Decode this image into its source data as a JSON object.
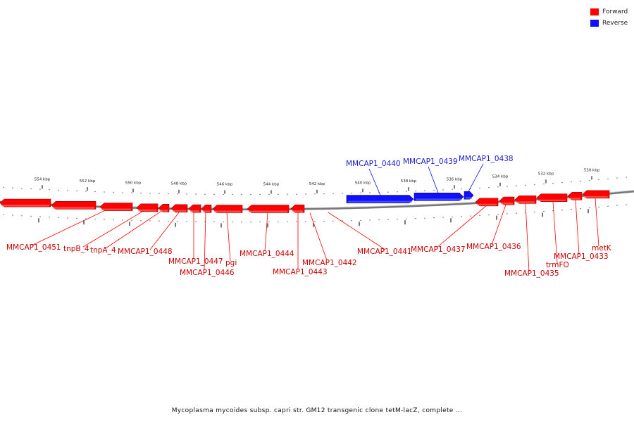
{
  "legend": {
    "items": [
      {
        "label": "Forward",
        "color": "#ff0000"
      },
      {
        "label": "Reverse",
        "color": "#1010ff"
      }
    ]
  },
  "caption": "Mycoplasma mycoides subsp. capri str. GM12 transgenic clone tetM-lacZ, complete ...",
  "ruler": {
    "unit": "kbp",
    "ticks": [
      "554 kbp",
      "552 kbp",
      "550 kbp",
      "548 kbp",
      "546 kbp",
      "544 kbp",
      "542 kbp",
      "540 kbp",
      "538 kbp",
      "536 kbp",
      "534 kbp",
      "532 kbp",
      "530 kbp"
    ]
  },
  "colors": {
    "forward": "#ff0000",
    "reverse": "#1010ff",
    "backbone": "#777777"
  },
  "genes": [
    {
      "label": "MMCAP1_0451",
      "strand": "forward"
    },
    {
      "label": "tnpB_4",
      "strand": "forward"
    },
    {
      "label": "tnpA_4",
      "strand": "forward"
    },
    {
      "label": "MMCAP1_0448",
      "strand": "forward"
    },
    {
      "label": "MMCAP1_0447",
      "strand": "forward"
    },
    {
      "label": "MMCAP1_0446",
      "strand": "forward"
    },
    {
      "label": "pgi",
      "strand": "forward"
    },
    {
      "label": "MMCAP1_0444",
      "strand": "forward"
    },
    {
      "label": "MMCAP1_0443",
      "strand": "forward"
    },
    {
      "label": "MMCAP1_0442",
      "strand": "forward"
    },
    {
      "label": "MMCAP1_0441",
      "strand": "forward"
    },
    {
      "label": "MMCAP1_0440",
      "strand": "reverse"
    },
    {
      "label": "MMCAP1_0439",
      "strand": "reverse"
    },
    {
      "label": "MMCAP1_0438",
      "strand": "reverse"
    },
    {
      "label": "MMCAP1_0437",
      "strand": "forward"
    },
    {
      "label": "MMCAP1_0436",
      "strand": "forward"
    },
    {
      "label": "MMCAP1_0435",
      "strand": "forward"
    },
    {
      "label": "trmFO",
      "strand": "forward"
    },
    {
      "label": "MMCAP1_0433",
      "strand": "forward"
    },
    {
      "label": "metK",
      "strand": "forward"
    }
  ]
}
